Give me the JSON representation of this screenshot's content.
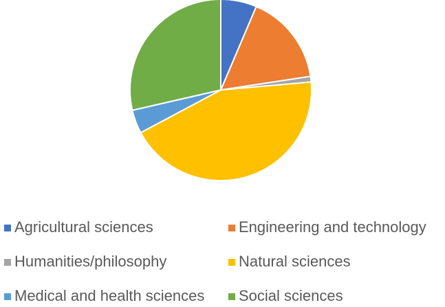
{
  "chart_data": {
    "type": "pie",
    "categories": [
      "Agricultural sciences",
      "Engineering and technology",
      "Humanities/philosophy",
      "Natural sciences",
      "Medical and health sciences",
      "Social sciences"
    ],
    "values": [
      6.4,
      16.2,
      1,
      43.6,
      4.2,
      28.6
    ],
    "colors": [
      "#4472c4",
      "#ed7d31",
      "#a5a5a5",
      "#ffc000",
      "#5b9bd5",
      "#70ad47"
    ],
    "legend": "bottom"
  }
}
